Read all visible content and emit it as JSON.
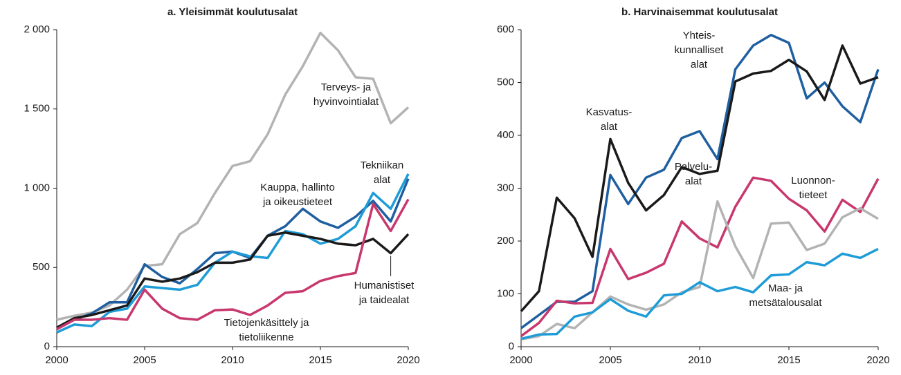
{
  "chart_data": [
    {
      "type": "line",
      "title": "a. Yleisimmät koulutusalat",
      "x": [
        2000,
        2001,
        2002,
        2003,
        2004,
        2005,
        2006,
        2007,
        2008,
        2009,
        2010,
        2011,
        2012,
        2013,
        2014,
        2015,
        2016,
        2017,
        2018,
        2019,
        2020
      ],
      "xlim": [
        2000,
        2020
      ],
      "xticks": [
        2000,
        2005,
        2010,
        2015,
        2020
      ],
      "ylim": [
        0,
        2000
      ],
      "yticks": [
        0,
        500,
        {
          "value": 1000,
          "label": "1 000"
        },
        {
          "value": 1500,
          "label": "1 500"
        },
        {
          "value": 2000,
          "label": "2 000"
        }
      ],
      "series": [
        {
          "label": [
            "Terveys- ja",
            "hyvinvointialat"
          ],
          "color": "#b3b3b3",
          "values": [
            170,
            195,
            215,
            260,
            360,
            510,
            520,
            710,
            780,
            970,
            1140,
            1170,
            1340,
            1590,
            1770,
            1980,
            1870,
            1700,
            1690,
            1410,
            1510
          ]
        },
        {
          "label": [
            "Kauppa, hallinto",
            "ja oikeustieteet"
          ],
          "color": "#1f5fa0",
          "values": [
            110,
            170,
            210,
            280,
            280,
            520,
            440,
            400,
            490,
            590,
            600,
            560,
            700,
            760,
            870,
            790,
            750,
            820,
            920,
            790,
            1060
          ]
        },
        {
          "label": [
            "Tekniikan",
            "alat"
          ],
          "color": "#1e9cd7",
          "values": [
            90,
            140,
            130,
            220,
            240,
            380,
            370,
            360,
            390,
            530,
            600,
            570,
            560,
            730,
            710,
            650,
            680,
            760,
            970,
            870,
            1090
          ]
        },
        {
          "label": [
            "Humanistiset",
            "ja taidealat"
          ],
          "color": "#1a1a1a",
          "values": [
            120,
            180,
            200,
            230,
            260,
            430,
            410,
            430,
            470,
            530,
            530,
            550,
            700,
            720,
            700,
            680,
            650,
            640,
            680,
            590,
            710
          ]
        },
        {
          "label": [
            "Tietojenkäsittely ja",
            "tietoliikenne"
          ],
          "color": "#c8376d",
          "values": [
            110,
            170,
            170,
            180,
            170,
            360,
            240,
            180,
            170,
            230,
            235,
            200,
            260,
            340,
            350,
            415,
            445,
            465,
            900,
            730,
            930
          ]
        }
      ]
    },
    {
      "type": "line",
      "title": "b. Harvinaisemmat koulutusalat",
      "x": [
        2000,
        2001,
        2002,
        2003,
        2004,
        2005,
        2006,
        2007,
        2008,
        2009,
        2010,
        2011,
        2012,
        2013,
        2014,
        2015,
        2016,
        2017,
        2018,
        2019,
        2020
      ],
      "xlim": [
        2000,
        2020
      ],
      "xticks": [
        2000,
        2005,
        2010,
        2015,
        2020
      ],
      "ylim": [
        0,
        600
      ],
      "yticks": [
        0,
        100,
        200,
        300,
        400,
        500,
        600
      ],
      "series": [
        {
          "label": [
            "Yhteis-",
            "kunnalliset",
            "alat"
          ],
          "color": "#1f5fa0",
          "values": [
            35,
            60,
            85,
            85,
            105,
            325,
            270,
            320,
            335,
            395,
            408,
            355,
            525,
            570,
            590,
            575,
            470,
            500,
            455,
            425,
            525
          ]
        },
        {
          "label": [
            "Kasvatus-",
            "alat"
          ],
          "color": "#1a1a1a",
          "values": [
            67,
            105,
            282,
            243,
            170,
            393,
            310,
            258,
            287,
            340,
            327,
            333,
            502,
            517,
            522,
            543,
            521,
            467,
            570,
            498,
            510
          ]
        },
        {
          "label": [
            "Luonnon-",
            "tieteet"
          ],
          "color": "#c8376d",
          "values": [
            20,
            45,
            87,
            82,
            83,
            185,
            128,
            140,
            157,
            237,
            205,
            188,
            265,
            320,
            314,
            280,
            258,
            218,
            278,
            255,
            318
          ]
        },
        {
          "label": [
            "Palvelu-",
            "alat"
          ],
          "color": "#b3b3b3",
          "values": [
            14,
            20,
            43,
            35,
            65,
            95,
            80,
            70,
            80,
            103,
            113,
            275,
            190,
            130,
            233,
            235,
            183,
            195,
            245,
            262,
            242
          ]
        },
        {
          "label": [
            "Maa- ja",
            "metsätalousalat"
          ],
          "color": "#1e9cd7",
          "values": [
            15,
            23,
            24,
            57,
            65,
            90,
            68,
            57,
            97,
            100,
            122,
            105,
            113,
            103,
            135,
            137,
            160,
            154,
            176,
            168,
            185
          ]
        }
      ]
    }
  ]
}
